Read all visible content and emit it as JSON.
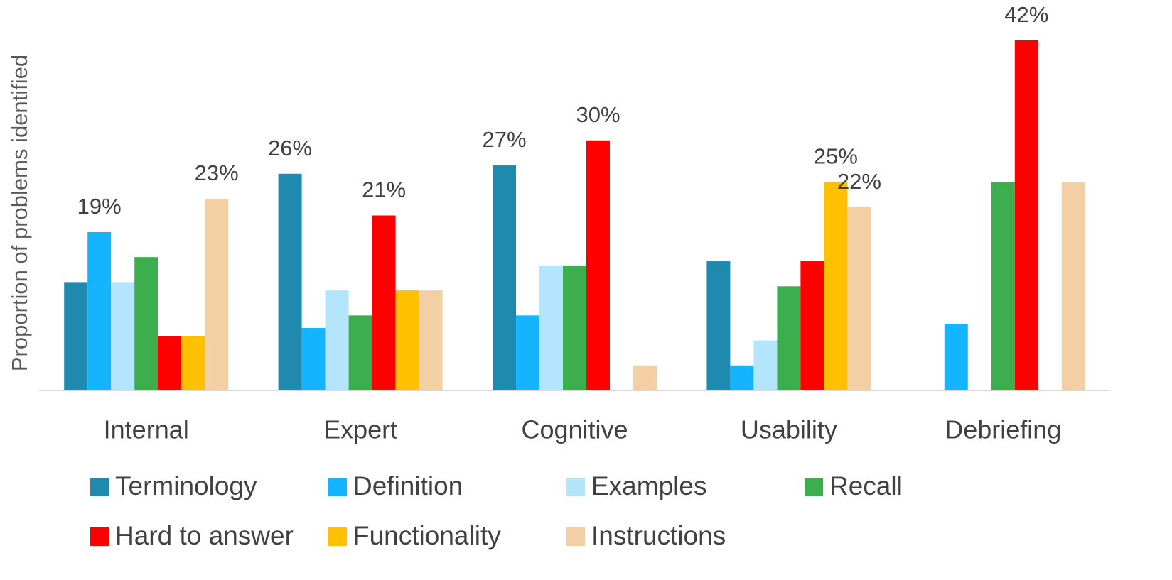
{
  "chart_data": {
    "type": "bar",
    "ylabel": "Proportion of problems identified",
    "categories": [
      "Internal",
      "Expert",
      "Cognitive",
      "Usability",
      "Debriefing"
    ],
    "ylim": [
      0,
      46
    ],
    "series": [
      {
        "name": "Terminology",
        "color": "#1f8aad",
        "values": [
          13,
          26,
          27,
          15.5,
          0
        ],
        "value_labels": [
          null,
          "26%",
          "27%",
          null,
          null
        ]
      },
      {
        "name": "Definition",
        "color": "#14b4ff",
        "values": [
          19,
          7.5,
          9,
          3,
          8
        ],
        "value_labels": [
          "19%",
          null,
          null,
          null,
          null
        ]
      },
      {
        "name": "Examples",
        "color": "#b3e5fc",
        "values": [
          13,
          12,
          15,
          6,
          0
        ],
        "value_labels": [
          null,
          null,
          null,
          null,
          null
        ]
      },
      {
        "name": "Recall",
        "color": "#3dae4e",
        "values": [
          16,
          9,
          15,
          12.5,
          25
        ],
        "value_labels": [
          null,
          null,
          null,
          null,
          null
        ]
      },
      {
        "name": "Hard to answer",
        "color": "#ff0000",
        "values": [
          6.5,
          21,
          30,
          15.5,
          42
        ],
        "value_labels": [
          null,
          "21%",
          "30%",
          null,
          "42%"
        ]
      },
      {
        "name": "Functionality",
        "color": "#ffc000",
        "values": [
          6.5,
          12,
          0,
          25,
          0
        ],
        "value_labels": [
          null,
          null,
          null,
          "25%",
          null
        ]
      },
      {
        "name": "Instructions",
        "color": "#f2d0a4",
        "values": [
          23,
          12,
          3,
          22,
          25
        ],
        "value_labels": [
          "23%",
          null,
          null,
          "22%",
          null
        ]
      }
    ]
  }
}
